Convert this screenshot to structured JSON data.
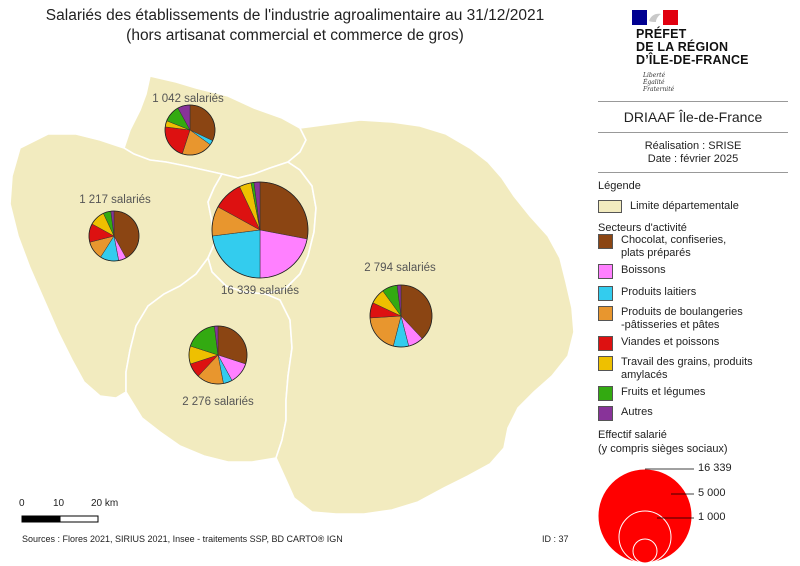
{
  "title": {
    "line1": "Salariés des établissements de l'industrie agroalimentaire au 31/12/2021",
    "line2": "(hors artisanat commercial et commerce de gros)"
  },
  "logo": {
    "line1": "PRÉFET",
    "line2": "DE LA RÉGION",
    "line3": "D’ÎLE-DE-FRANCE",
    "devise1": "Liberté",
    "devise2": "Égalité",
    "devise3": "Fraternité"
  },
  "org": "DRIAAF Île-de-France",
  "realisation": "Réalisation : SRISE",
  "date": "Date : février 2025",
  "legend": {
    "title": "Légende",
    "boundary_label": "Limite départementale",
    "sectors_title": "Secteurs d'activité",
    "sectors": [
      {
        "line1": "Chocolat, confiseries,",
        "line2": "plats préparés",
        "color": "#8B4513"
      },
      {
        "line1": "Boissons",
        "line2": "",
        "color": "#FF80FF"
      },
      {
        "line1": "Produits laitiers",
        "line2": "",
        "color": "#33CCEE"
      },
      {
        "line1": "Produits de boulangeries",
        "line2": "-pâtisseries et pâtes",
        "color": "#E8962E"
      },
      {
        "line1": "Viandes et poissons",
        "line2": "",
        "color": "#DD1111"
      },
      {
        "line1": "Travail des grains, produits",
        "line2": "amylacés",
        "color": "#EEC000"
      },
      {
        "line1": "Fruits et légumes",
        "line2": "",
        "color": "#33AA11"
      },
      {
        "line1": "Autres",
        "line2": "",
        "color": "#883399"
      }
    ],
    "size_title1": "Effectif salarié",
    "size_title2": "(y compris sièges sociaux)",
    "sizes": [
      "16 339",
      "5 000",
      "1 000"
    ]
  },
  "map": {
    "fill": "#F2EBBF",
    "stroke": "#FFFFFF",
    "departments": [
      {
        "label": "1 042 salariés",
        "total": 1042,
        "shares": [
          0.32,
          0,
          0.03,
          0.2,
          0.22,
          0.04,
          0.11,
          0.08
        ]
      },
      {
        "label": "1 217 salariés",
        "total": 1217,
        "shares": [
          0.42,
          0.05,
          0.12,
          0.12,
          0.12,
          0.1,
          0.05,
          0.02
        ]
      },
      {
        "label": "16 339 salariés",
        "total": 16339,
        "shares": [
          0.28,
          0.22,
          0.23,
          0.1,
          0.1,
          0.04,
          0.01,
          0.02
        ]
      },
      {
        "label": "2 794 salariés",
        "total": 2794,
        "shares": [
          0.38,
          0.08,
          0.08,
          0.2,
          0.08,
          0.08,
          0.08,
          0.02
        ]
      },
      {
        "label": "2 276 salariés",
        "total": 2276,
        "shares": [
          0.3,
          0.12,
          0.05,
          0.15,
          0.08,
          0.1,
          0.18,
          0.02
        ]
      }
    ]
  },
  "scale": {
    "labels": [
      "0",
      "10",
      "20 km"
    ]
  },
  "sources": "Sources : Flores 2021, SIRIUS 2021, Insee - traitements SSP, BD CARTO® IGN",
  "id": "ID : 37"
}
